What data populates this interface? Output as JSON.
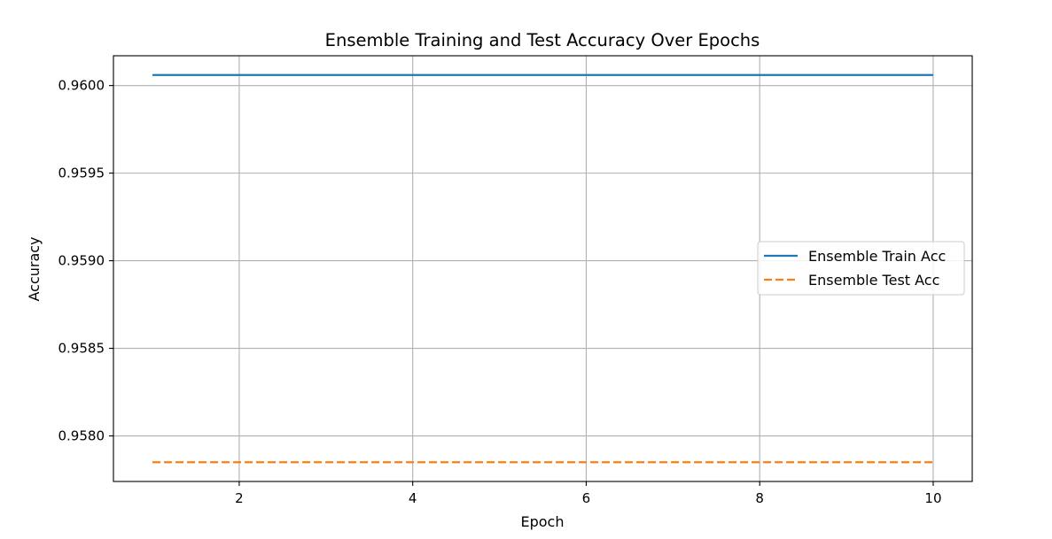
{
  "chart_data": {
    "type": "line",
    "title": "Ensemble Training and Test Accuracy Over Epochs",
    "xlabel": "Epoch",
    "ylabel": "Accuracy",
    "x": [
      1,
      2,
      3,
      4,
      5,
      6,
      7,
      8,
      9,
      10
    ],
    "xlim": [
      0.55,
      10.45
    ],
    "ylim": [
      0.95774,
      0.96017
    ],
    "xticks": [
      2,
      4,
      6,
      8,
      10
    ],
    "xtick_labels": [
      "2",
      "4",
      "6",
      "8",
      "10"
    ],
    "yticks": [
      0.958,
      0.9585,
      0.959,
      0.9595,
      0.96
    ],
    "ytick_labels": [
      "0.9580",
      "0.9585",
      "0.9590",
      "0.9595",
      "0.9600"
    ],
    "grid": true,
    "legend_position": "center-right",
    "series": [
      {
        "name": "Ensemble Train Acc",
        "values": [
          0.96006,
          0.96006,
          0.96006,
          0.96006,
          0.96006,
          0.96006,
          0.96006,
          0.96006,
          0.96006,
          0.96006
        ],
        "color": "#1f77b4",
        "linestyle": "solid"
      },
      {
        "name": "Ensemble Test Acc",
        "values": [
          0.95785,
          0.95785,
          0.95785,
          0.95785,
          0.95785,
          0.95785,
          0.95785,
          0.95785,
          0.95785,
          0.95785
        ],
        "color": "#ff7f0e",
        "linestyle": "dashed"
      }
    ]
  }
}
